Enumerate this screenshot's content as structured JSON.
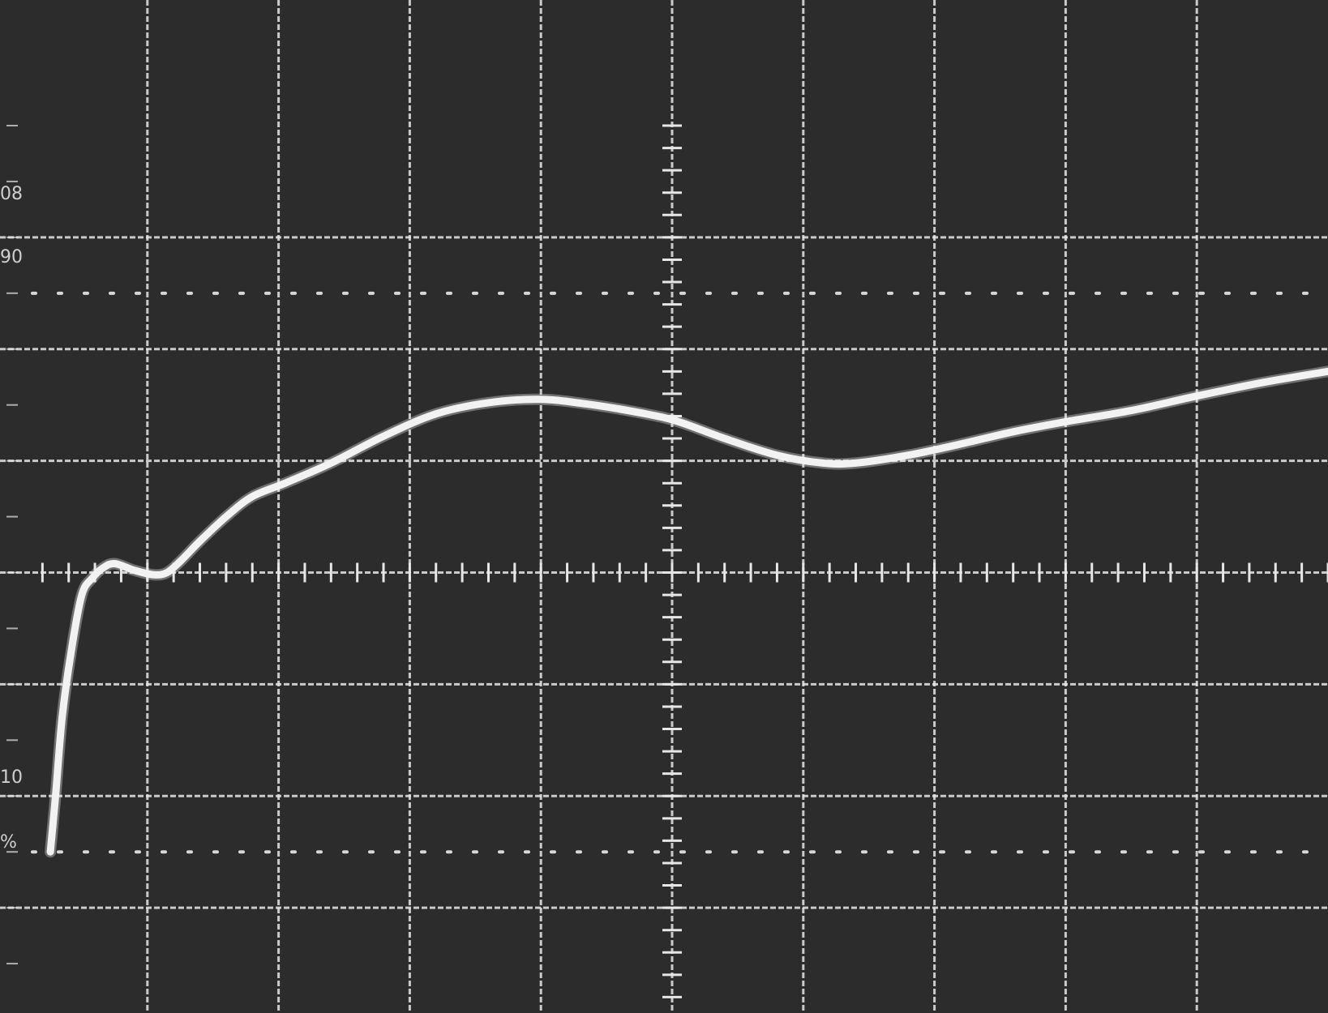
{
  "chart_data": {
    "type": "line",
    "title": "",
    "xlabel": "",
    "ylabel": "",
    "grid": true,
    "xlim": [
      0,
      10
    ],
    "ylim": [
      -1,
      7
    ],
    "margin_labels": [
      "08",
      "90",
      "10",
      "%"
    ],
    "reference_levels": [
      {
        "y": 5.5,
        "style": "dotted"
      },
      {
        "y": 0.5,
        "style": "dotted"
      },
      {
        "y": 3.0,
        "style": "ticked"
      }
    ],
    "series": [
      {
        "x": [
          0.26,
          0.3,
          0.35,
          0.42,
          0.5,
          0.58,
          0.66,
          0.75,
          0.9,
          1.05,
          1.15,
          1.25,
          1.4,
          1.6,
          1.8,
          2.05,
          2.4,
          2.8,
          3.2,
          3.6,
          4.0,
          4.4,
          4.8,
          5.05,
          5.4,
          5.8,
          6.15,
          6.4,
          6.8,
          7.2,
          7.6,
          8.0,
          8.5,
          9.0,
          9.5,
          10.0
        ],
        "y": [
          0.5,
          1.0,
          1.7,
          2.3,
          2.8,
          2.95,
          3.04,
          3.08,
          3.02,
          2.98,
          3.0,
          3.1,
          3.28,
          3.5,
          3.68,
          3.8,
          3.98,
          4.22,
          4.42,
          4.52,
          4.55,
          4.5,
          4.42,
          4.35,
          4.2,
          4.05,
          3.98,
          3.98,
          4.05,
          4.15,
          4.26,
          4.35,
          4.45,
          4.58,
          4.7,
          4.8
        ]
      }
    ]
  },
  "colors": {
    "background": "#2c2c2c",
    "grid": "#e6e6e6",
    "trace": "#f2f2f2",
    "dots": "#d8d8d8"
  }
}
